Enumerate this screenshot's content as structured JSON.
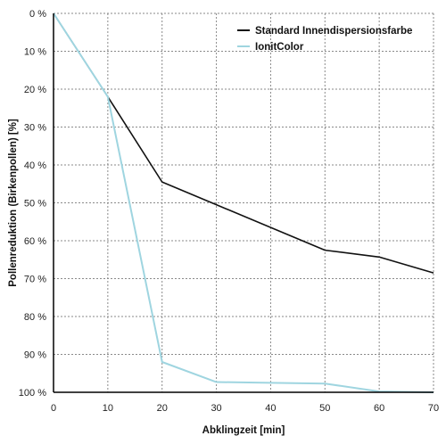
{
  "chart_data": {
    "type": "line",
    "title": "",
    "xlabel": "Abklingzeit [min]",
    "ylabel": "Pollenreduktion (Birkenpollen) [%]",
    "xlim": [
      0,
      70
    ],
    "ylim": [
      0,
      100
    ],
    "y_inverted": true,
    "grid": true,
    "legend_position": "top-right",
    "x_ticks": [
      "0",
      "10",
      "20",
      "30",
      "40",
      "50",
      "60",
      "70"
    ],
    "y_ticks": [
      "0 %",
      "10 %",
      "20 %",
      "30 %",
      "40 %",
      "50 %",
      "60 %",
      "70 %",
      "80 %",
      "90 %",
      "100 %"
    ],
    "series": [
      {
        "name": "Standard Innendispersionsfarbe",
        "color": "#111111",
        "x": [
          0,
          10,
          20,
          30,
          40,
          50,
          60,
          70
        ],
        "values": [
          0,
          22,
          44.5,
          50.5,
          56.5,
          62.5,
          64.3,
          68.5
        ]
      },
      {
        "name": "IonitColor",
        "color": "#9fd5e0",
        "x": [
          0,
          10,
          20,
          30,
          40,
          50,
          60,
          70
        ],
        "values": [
          0,
          22,
          92,
          97.3,
          97.5,
          97.7,
          99.8,
          100
        ]
      }
    ]
  }
}
